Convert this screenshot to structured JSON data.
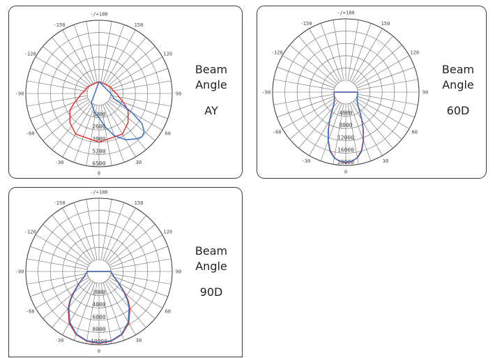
{
  "charts": [
    {
      "beam_label": "Beam\nAngle",
      "mode": "AY",
      "chart_data": {
        "type": "polar",
        "angle_labels": [
          "-/+180",
          "-150",
          "150",
          "-120",
          "120",
          "-90",
          "90",
          "-60",
          "60",
          "-30",
          "30",
          "0"
        ],
        "radial_labels": [
          "1300",
          "2600",
          "3900",
          "5200",
          "6500"
        ],
        "radial_max": 6500,
        "series": [
          {
            "color": "#e53030",
            "points": [
              [
                0,
                3900
              ],
              [
                30,
                3700
              ],
              [
                45,
                3100
              ],
              [
                60,
                2300
              ],
              [
                70,
                1500
              ],
              [
                80,
                900
              ],
              [
                90,
                600
              ],
              [
                100,
                300
              ],
              [
                120,
                150
              ],
              [
                180,
                0
              ],
              [
                240,
                150
              ],
              [
                260,
                300
              ],
              [
                270,
                600
              ],
              [
                280,
                900
              ],
              [
                290,
                1500
              ],
              [
                300,
                2300
              ],
              [
                315,
                3100
              ],
              [
                330,
                3700
              ]
            ]
          },
          {
            "color": "#3a6fc0",
            "points": [
              [
                0,
                1300
              ],
              [
                10,
                2300
              ],
              [
                20,
                3500
              ],
              [
                30,
                4400
              ],
              [
                40,
                5000
              ],
              [
                45,
                5200
              ],
              [
                50,
                5000
              ],
              [
                55,
                4300
              ],
              [
                60,
                2800
              ],
              [
                65,
                1400
              ],
              [
                70,
                500
              ],
              [
                90,
                0
              ],
              [
                180,
                0
              ],
              [
                320,
                0
              ],
              [
                340,
                500
              ],
              [
                350,
                900
              ]
            ]
          }
        ]
      }
    },
    {
      "beam_label": "Beam\nAngle",
      "mode": "60D",
      "chart_data": {
        "type": "polar",
        "angle_labels": [
          "-/+180",
          "-150",
          "150",
          "-120",
          "120",
          "-90",
          "90",
          "-60",
          "60",
          "-30",
          "30",
          "0"
        ],
        "radial_labels": [
          "4000",
          "8000",
          "12000",
          "16000",
          "20000"
        ],
        "radial_max": 20000,
        "series": [
          {
            "color": "#e53030",
            "points": [
              [
                0,
                19200
              ],
              [
                5,
                18800
              ],
              [
                10,
                17800
              ],
              [
                15,
                15800
              ],
              [
                20,
                12800
              ],
              [
                25,
                9500
              ],
              [
                30,
                6500
              ],
              [
                35,
                4100
              ],
              [
                40,
                2500
              ],
              [
                50,
                1000
              ],
              [
                60,
                400
              ],
              [
                90,
                0
              ],
              [
                270,
                0
              ],
              [
                300,
                400
              ],
              [
                310,
                1000
              ],
              [
                320,
                2500
              ],
              [
                325,
                4100
              ],
              [
                330,
                6500
              ],
              [
                335,
                9500
              ],
              [
                340,
                12800
              ],
              [
                345,
                15800
              ],
              [
                350,
                17800
              ],
              [
                355,
                18800
              ]
            ]
          },
          {
            "color": "#3a6fc0",
            "points": [
              [
                0,
                19000
              ],
              [
                5,
                18700
              ],
              [
                10,
                17900
              ],
              [
                15,
                16100
              ],
              [
                20,
                13000
              ],
              [
                25,
                9700
              ],
              [
                30,
                6700
              ],
              [
                35,
                4300
              ],
              [
                40,
                2600
              ],
              [
                50,
                1100
              ],
              [
                60,
                450
              ],
              [
                90,
                0
              ],
              [
                270,
                0
              ],
              [
                300,
                450
              ],
              [
                310,
                1100
              ],
              [
                320,
                2600
              ],
              [
                325,
                4300
              ],
              [
                330,
                6700
              ],
              [
                335,
                9700
              ],
              [
                340,
                13000
              ],
              [
                345,
                16100
              ],
              [
                350,
                17900
              ],
              [
                355,
                18700
              ]
            ]
          }
        ]
      }
    },
    {
      "beam_label": "Beam\nAngle",
      "mode": "90D",
      "chart_data": {
        "type": "polar",
        "angle_labels": [
          "-/+180",
          "-150",
          "150",
          "-120",
          "120",
          "-90",
          "90",
          "-60",
          "60",
          "-30",
          "30",
          "0"
        ],
        "radial_labels": [
          "2000",
          "4000",
          "6000",
          "8000",
          "10000"
        ],
        "radial_max": 10000,
        "series": [
          {
            "color": "#e53030",
            "points": [
              [
                0,
                9800
              ],
              [
                10,
                9600
              ],
              [
                20,
                9000
              ],
              [
                30,
                7800
              ],
              [
                40,
                5900
              ],
              [
                45,
                4800
              ],
              [
                50,
                3600
              ],
              [
                60,
                1800
              ],
              [
                70,
                700
              ],
              [
                90,
                0
              ],
              [
                270,
                0
              ],
              [
                290,
                700
              ],
              [
                300,
                1800
              ],
              [
                310,
                3600
              ],
              [
                315,
                4800
              ],
              [
                320,
                5900
              ],
              [
                330,
                7800
              ],
              [
                340,
                9000
              ],
              [
                350,
                9600
              ]
            ]
          },
          {
            "color": "#3a6fc0",
            "points": [
              [
                0,
                9700
              ],
              [
                10,
                9500
              ],
              [
                20,
                8900
              ],
              [
                30,
                7600
              ],
              [
                40,
                5700
              ],
              [
                45,
                4600
              ],
              [
                50,
                3400
              ],
              [
                60,
                1700
              ],
              [
                70,
                650
              ],
              [
                90,
                0
              ],
              [
                270,
                0
              ],
              [
                290,
                650
              ],
              [
                300,
                1700
              ],
              [
                310,
                3400
              ],
              [
                315,
                4600
              ],
              [
                320,
                5700
              ],
              [
                330,
                7600
              ],
              [
                340,
                8900
              ],
              [
                350,
                9500
              ]
            ]
          }
        ]
      }
    }
  ]
}
